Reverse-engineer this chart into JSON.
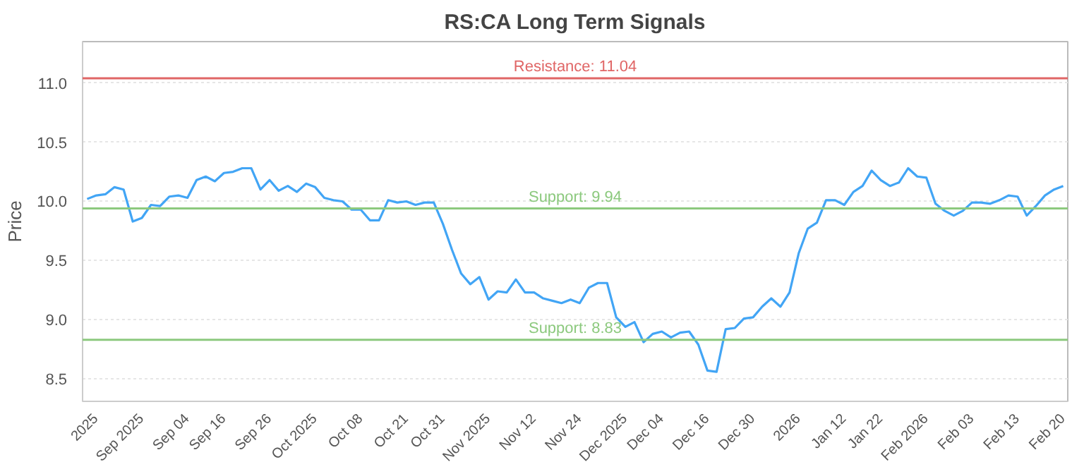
{
  "chart_data": {
    "type": "line",
    "title": "RS:CA Long Term Signals",
    "ylabel": "Price",
    "categories": [
      null,
      "2025",
      null,
      null,
      null,
      null,
      "Sep 2025",
      null,
      null,
      null,
      null,
      "Sep 04",
      null,
      null,
      null,
      "Sep 16",
      null,
      null,
      null,
      null,
      "Sep 26",
      null,
      null,
      null,
      null,
      "Oct 2025",
      null,
      null,
      null,
      null,
      "Oct 08",
      null,
      null,
      null,
      null,
      "Oct 21",
      null,
      null,
      null,
      "Oct 31",
      null,
      null,
      null,
      null,
      "Nov 2025",
      null,
      null,
      null,
      null,
      "Nov 12",
      null,
      null,
      null,
      null,
      "Nov 24",
      null,
      null,
      null,
      null,
      "Dec 2025",
      null,
      null,
      null,
      "Dec 04",
      null,
      null,
      null,
      null,
      "Dec 16",
      null,
      null,
      null,
      null,
      "Dec 30",
      null,
      null,
      null,
      null,
      "2026",
      null,
      null,
      null,
      null,
      "Jan 12",
      null,
      null,
      null,
      "Jan 22",
      null,
      null,
      null,
      null,
      "Feb 2026",
      null,
      null,
      null,
      null,
      "Feb 03",
      null,
      null,
      null,
      null,
      "Feb 13",
      null,
      null,
      null,
      null,
      "Feb 20"
    ],
    "series": [
      {
        "color": "#42a5f5",
        "values": [
          10.02,
          10.05,
          10.06,
          10.12,
          10.1,
          9.83,
          9.86,
          9.97,
          9.96,
          10.04,
          10.05,
          10.03,
          10.18,
          10.21,
          10.17,
          10.24,
          10.25,
          10.28,
          10.28,
          10.1,
          10.18,
          10.09,
          10.13,
          10.08,
          10.15,
          10.12,
          10.03,
          10.01,
          10.0,
          9.93,
          9.93,
          9.84,
          9.84,
          10.01,
          9.99,
          10.0,
          9.97,
          9.99,
          9.99,
          9.81,
          9.59,
          9.39,
          9.3,
          9.36,
          9.17,
          9.24,
          9.23,
          9.34,
          9.23,
          9.23,
          9.18,
          9.16,
          9.14,
          9.17,
          9.14,
          9.27,
          9.31,
          9.31,
          9.02,
          8.94,
          8.98,
          8.81,
          8.88,
          8.9,
          8.85,
          8.89,
          8.9,
          8.79,
          8.57,
          8.56,
          8.92,
          8.93,
          9.01,
          9.02,
          9.11,
          9.18,
          9.11,
          9.23,
          9.56,
          9.77,
          9.82,
          10.01,
          10.01,
          9.97,
          10.08,
          10.13,
          10.26,
          10.18,
          10.13,
          10.16,
          10.28,
          10.21,
          10.2,
          9.98,
          9.92,
          9.88,
          9.92,
          9.99,
          9.99,
          9.98,
          10.01,
          10.05,
          10.04,
          9.88,
          9.96,
          10.05,
          10.1,
          10.13
        ]
      }
    ],
    "ylim": [
      8.31,
      11.35
    ],
    "yticks": [
      {
        "value": 8.5,
        "label": "8.5"
      },
      {
        "value": 9,
        "label": "9.0"
      },
      {
        "value": 9.5,
        "label": "9.5"
      },
      {
        "value": 10,
        "label": "10.0"
      },
      {
        "value": 10.5,
        "label": "10.5"
      },
      {
        "value": 11,
        "label": "11.0"
      }
    ],
    "grid": "y",
    "marker": "none",
    "line_style": "solid",
    "ref_lines": [
      {
        "axis": "y",
        "value": 11.04,
        "label": "Resistance: 11.04",
        "color": "#e06666"
      },
      {
        "axis": "y",
        "value": 9.94,
        "label": "Support: 9.94",
        "color": "#8cc97e"
      },
      {
        "axis": "y",
        "value": 8.83,
        "label": "Support: 8.83",
        "color": "#8cc97e"
      }
    ]
  }
}
